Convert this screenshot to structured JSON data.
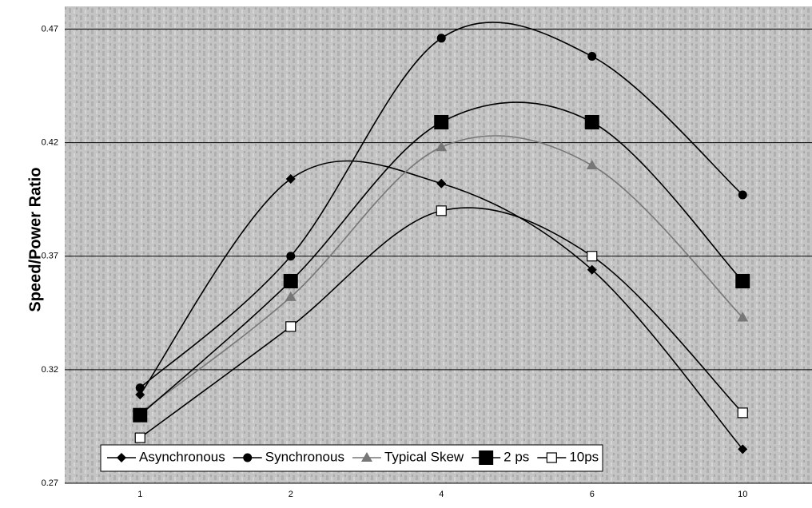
{
  "chart_data": {
    "type": "line",
    "y_label": "Speed/Power Ratio",
    "categories": [
      "1",
      "2",
      "4",
      "6",
      "10"
    ],
    "series": [
      {
        "name": "Asynchronous",
        "color": "#000000",
        "marker": "diamond",
        "values": [
          0.309,
          0.404,
          0.402,
          0.364,
          0.285
        ]
      },
      {
        "name": "Synchronous",
        "color": "#000000",
        "marker": "circle",
        "values": [
          0.312,
          0.37,
          0.466,
          0.458,
          0.397
        ]
      },
      {
        "name": "Typical Skew",
        "color": "#777777",
        "marker": "triangle",
        "values": [
          0.301,
          0.352,
          0.418,
          0.41,
          0.343
        ]
      },
      {
        "name": "2 ps",
        "color": "#000000",
        "marker": "square",
        "values": [
          0.3,
          0.359,
          0.429,
          0.429,
          0.359
        ]
      },
      {
        "name": "10ps",
        "color": "#000000",
        "marker": "open-square",
        "values": [
          0.29,
          0.339,
          0.39,
          0.37,
          0.301
        ]
      }
    ],
    "ylim": [
      0.27,
      0.48
    ],
    "yticks": [
      0.27,
      0.32,
      0.37,
      0.42,
      0.47
    ],
    "grid": true,
    "legend": "bottom"
  }
}
